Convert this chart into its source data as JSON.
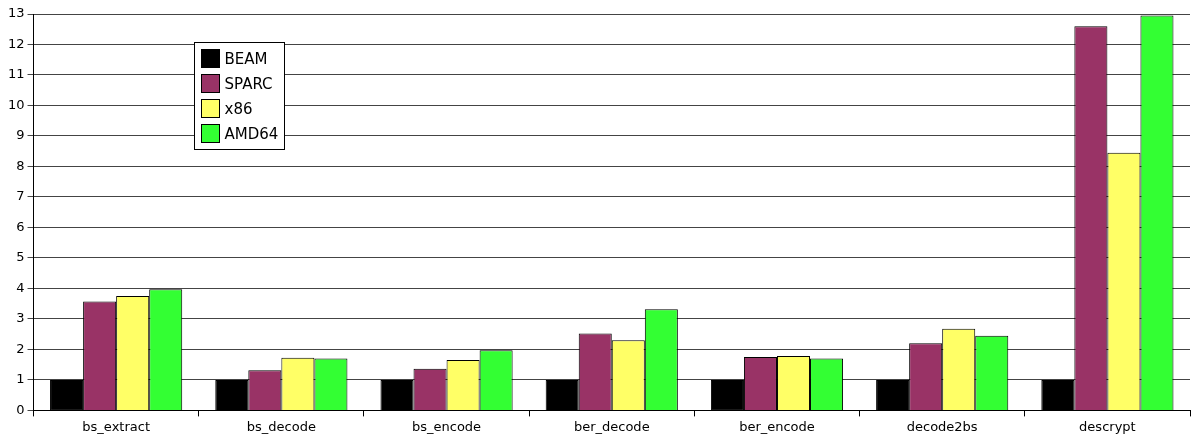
{
  "chart_data": {
    "type": "bar",
    "categories": [
      "bs_extract",
      "bs_decode",
      "bs_encode",
      "ber_decode",
      "ber_encode",
      "decode2bs",
      "descrypt"
    ],
    "series": [
      {
        "name": "BEAM",
        "color": "#000000",
        "values": [
          1,
          1,
          1,
          1,
          1,
          1,
          1
        ]
      },
      {
        "name": "SPARC",
        "color": "#993366",
        "values": [
          3.57,
          1.32,
          1.37,
          2.52,
          1.75,
          2.2,
          12.6
        ]
      },
      {
        "name": "x86",
        "color": "#ffff66",
        "values": [
          3.75,
          1.73,
          1.65,
          2.3,
          1.78,
          2.68,
          8.45
        ]
      },
      {
        "name": "AMD64",
        "color": "#33ff33",
        "values": [
          3.97,
          1.7,
          1.97,
          3.32,
          1.7,
          2.45,
          12.95
        ]
      }
    ],
    "ylim": [
      0,
      13
    ],
    "yticks": [
      0,
      1,
      2,
      3,
      4,
      5,
      6,
      7,
      8,
      9,
      10,
      11,
      12,
      13
    ],
    "grid": "y",
    "legend": "top left"
  }
}
